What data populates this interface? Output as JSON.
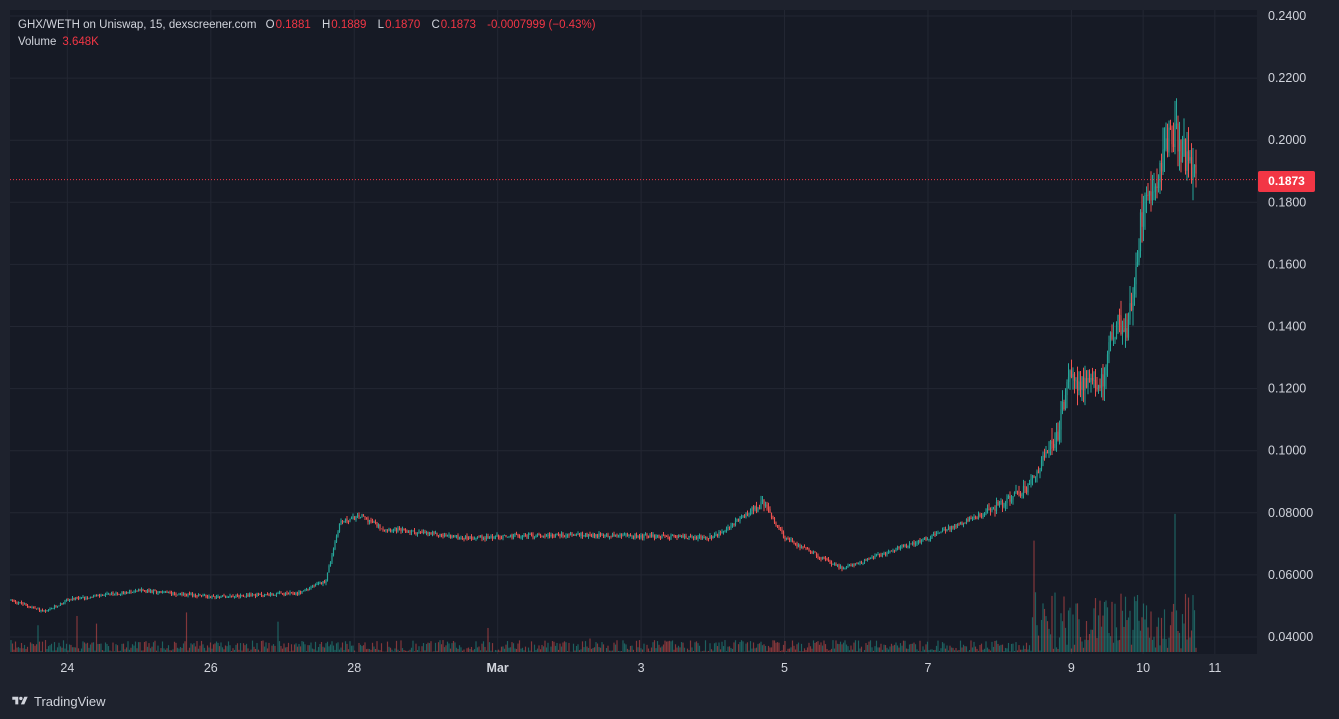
{
  "legend": {
    "symbol": "GHX/WETH on Uniswap, 15, dexscreener.com",
    "o_label": "O",
    "o_value": "0.1881",
    "h_label": "H",
    "h_value": "0.1889",
    "l_label": "L",
    "l_value": "0.1870",
    "c_label": "C",
    "c_value": "0.1873",
    "change": "-0.0007999 (−0.43%)",
    "volume_label": "Volume",
    "volume_value": "3.648K"
  },
  "last_price": "0.1873",
  "footer": {
    "brand": "TradingView"
  },
  "colors": {
    "up": "#26a69a",
    "down": "#ef5350",
    "last_price": "#f23645",
    "background": "#161a25",
    "grid": "#232733"
  },
  "chart_data": {
    "type": "candlestick",
    "title": "GHX/WETH on Uniswap, 15, dexscreener.com",
    "y_ticks": [
      "0.2400",
      "0.2200",
      "0.2000",
      "0.1800",
      "0.1600",
      "0.1400",
      "0.1200",
      "0.1000",
      "0.08000",
      "0.06000",
      "0.04000"
    ],
    "y_tick_values": [
      0.24,
      0.22,
      0.2,
      0.18,
      0.16,
      0.14,
      0.12,
      0.1,
      0.08,
      0.06,
      0.04
    ],
    "ylim": [
      0.035,
      0.24
    ],
    "x_ticks": [
      "24",
      "26",
      "28",
      "Mar",
      "3",
      "5",
      "7",
      "9",
      "10",
      "11"
    ],
    "x_tick_days": [
      23,
      25,
      27,
      29,
      31,
      33,
      35,
      37,
      38,
      39
    ],
    "x_range_days": [
      22.2,
      39.1
    ],
    "price_path": [
      {
        "day": 22.2,
        "price": 0.052
      },
      {
        "day": 22.7,
        "price": 0.048
      },
      {
        "day": 23.0,
        "price": 0.052
      },
      {
        "day": 24.0,
        "price": 0.055
      },
      {
        "day": 25.0,
        "price": 0.053
      },
      {
        "day": 26.2,
        "price": 0.054
      },
      {
        "day": 26.6,
        "price": 0.058
      },
      {
        "day": 26.8,
        "price": 0.077
      },
      {
        "day": 27.1,
        "price": 0.079
      },
      {
        "day": 27.4,
        "price": 0.075
      },
      {
        "day": 28.5,
        "price": 0.072
      },
      {
        "day": 30.0,
        "price": 0.073
      },
      {
        "day": 32.0,
        "price": 0.072
      },
      {
        "day": 32.7,
        "price": 0.083
      },
      {
        "day": 33.0,
        "price": 0.072
      },
      {
        "day": 33.8,
        "price": 0.062
      },
      {
        "day": 35.0,
        "price": 0.072
      },
      {
        "day": 35.8,
        "price": 0.08
      },
      {
        "day": 36.4,
        "price": 0.088
      },
      {
        "day": 36.8,
        "price": 0.105
      },
      {
        "day": 37.0,
        "price": 0.125
      },
      {
        "day": 37.2,
        "price": 0.12
      },
      {
        "day": 37.4,
        "price": 0.12
      },
      {
        "day": 37.6,
        "price": 0.14
      },
      {
        "day": 37.8,
        "price": 0.14
      },
      {
        "day": 38.0,
        "price": 0.18
      },
      {
        "day": 38.2,
        "price": 0.19
      },
      {
        "day": 38.4,
        "price": 0.205
      },
      {
        "day": 38.6,
        "price": 0.195
      },
      {
        "day": 38.75,
        "price": 0.1873
      }
    ],
    "last_price": 0.1873,
    "last_candle": {
      "open": 0.1881,
      "high": 0.1889,
      "low": 0.187,
      "close": 0.1873
    },
    "volume_last": "3.648K",
    "grid": true,
    "legend_position": "top-left"
  }
}
